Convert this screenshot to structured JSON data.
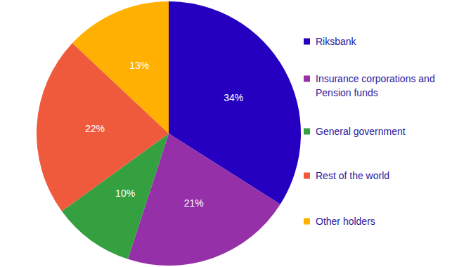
{
  "chart_data": {
    "type": "pie",
    "categories": [
      "Riksbank",
      "Insurance corporations and Pension funds",
      "General government",
      "Rest of the world",
      "Other holders"
    ],
    "values": [
      34,
      21,
      10,
      22,
      13
    ],
    "value_labels": [
      "34%",
      "21%",
      "10%",
      "22%",
      "13%"
    ],
    "colors": [
      "#2500c0",
      "#9530a8",
      "#35a040",
      "#f05a3c",
      "#ffb000"
    ],
    "data_labels": true,
    "legend": "right"
  }
}
